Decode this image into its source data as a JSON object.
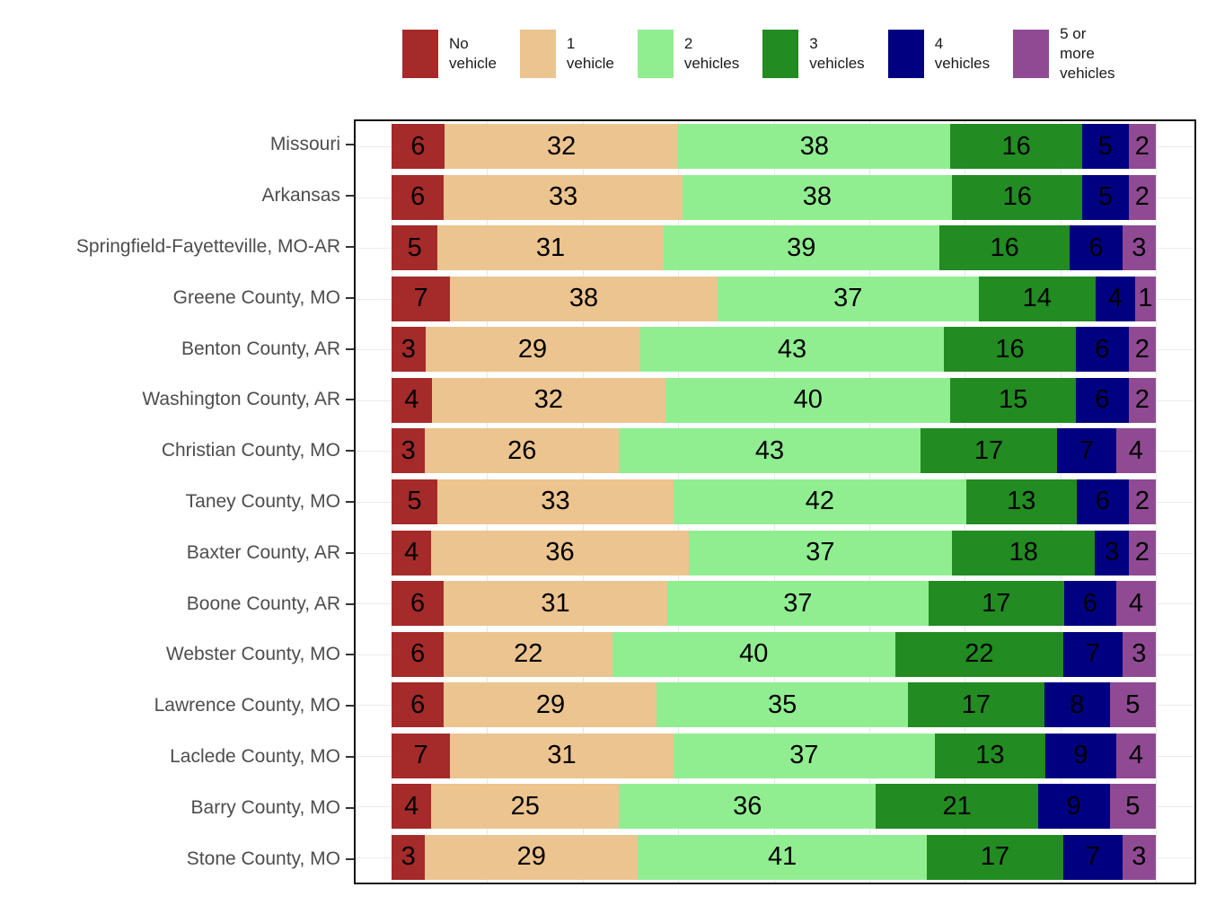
{
  "chart_data": {
    "type": "bar",
    "orientation": "horizontal",
    "stacked": true,
    "normalized_to_100": true,
    "title": "",
    "xlabel": "",
    "ylabel": "",
    "xlim": [
      0,
      100
    ],
    "grid": {
      "vertical_lines_every_pct": 12.5,
      "color": "#e7e7e7",
      "horizontal_row_lines": true
    },
    "legend": {
      "position": "top"
    },
    "panel": {
      "border_color": "#141414",
      "background": "#ffffff",
      "axis_text_color": "#4d4d4d"
    },
    "categories": [
      "Missouri",
      "Arkansas",
      "Springfield-Fayetteville, MO-AR",
      "Greene County, MO",
      "Benton County, AR",
      "Washington County, AR",
      "Christian County, MO",
      "Taney County, MO",
      "Baxter County, AR",
      "Boone County, AR",
      "Webster County, MO",
      "Lawrence County, MO",
      "Laclede County, MO",
      "Barry County, MO",
      "Stone County, MO"
    ],
    "series": [
      {
        "name": "No vehicle",
        "legend_label": "No\nvehicle",
        "color": "#A52A2A",
        "values": [
          6,
          6,
          5,
          7,
          3,
          4,
          3,
          5,
          4,
          6,
          6,
          6,
          7,
          4,
          3
        ]
      },
      {
        "name": "1 vehicle",
        "legend_label": "1\nvehicle",
        "color": "#ECC48F",
        "values": [
          32,
          33,
          31,
          38,
          29,
          32,
          26,
          33,
          36,
          31,
          22,
          29,
          31,
          25,
          29
        ]
      },
      {
        "name": "2 vehicles",
        "legend_label": "2\nvehicles",
        "color": "#90EE90",
        "values": [
          38,
          38,
          39,
          37,
          43,
          40,
          43,
          42,
          37,
          37,
          40,
          35,
          37,
          36,
          41
        ]
      },
      {
        "name": "3 vehicles",
        "legend_label": "3\nvehicles",
        "color": "#228B22",
        "values": [
          16,
          16,
          16,
          14,
          16,
          15,
          17,
          13,
          18,
          17,
          22,
          17,
          13,
          21,
          17
        ]
      },
      {
        "name": "4 vehicles",
        "legend_label": "4\nvehicles",
        "color": "#000080",
        "values": [
          5,
          5,
          6,
          4,
          6,
          6,
          7,
          6,
          3,
          6,
          7,
          8,
          9,
          9,
          7
        ]
      },
      {
        "name": "5 or more vehicles",
        "legend_label": "5 or\nmore\nvehicles",
        "color": "#904A93",
        "values": [
          2,
          2,
          3,
          1,
          2,
          2,
          4,
          2,
          2,
          4,
          3,
          5,
          4,
          5,
          3
        ]
      }
    ],
    "value_labels_inside_segments": true
  }
}
